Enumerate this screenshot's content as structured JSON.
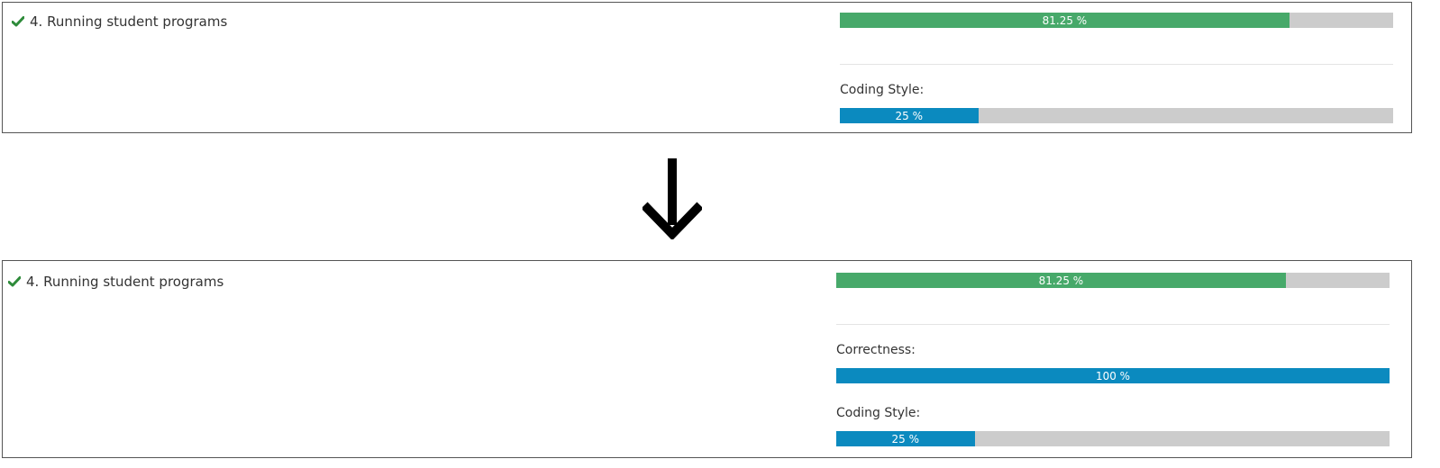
{
  "before": {
    "task_title": "4. Running student programs",
    "overall": {
      "percent": 81.25,
      "label": "81.25 %"
    },
    "coding_style": {
      "label": "Coding Style:",
      "percent": 25,
      "value_label": "25 %"
    }
  },
  "after": {
    "task_title": "4. Running student programs",
    "overall": {
      "percent": 81.25,
      "label": "81.25 %"
    },
    "correctness": {
      "label": "Correctness:",
      "percent": 100,
      "value_label": "100 %"
    },
    "coding_style": {
      "label": "Coding Style:",
      "percent": 25,
      "value_label": "25 %"
    }
  },
  "icons": {
    "check": "checkmark-icon",
    "arrow": "arrow-down-icon"
  },
  "colors": {
    "success": "#47a96a",
    "info": "#0b8abf",
    "track": "#cccccc",
    "check": "#2e8b3a"
  }
}
